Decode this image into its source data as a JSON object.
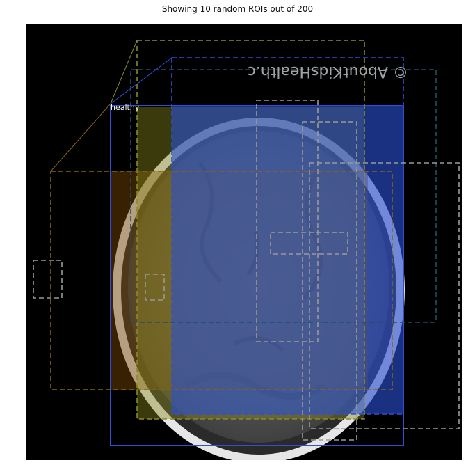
{
  "figure": {
    "title": "Showing 10 random ROIs out of 200"
  },
  "image": {
    "watermark": "© AboutKidsHealth.c"
  },
  "annotations": {
    "class_label": "healthy"
  },
  "colors": {
    "roi_blue": "#2f4fd8",
    "roi_olive": "#8a8a2a",
    "roi_orange": "#8a6414",
    "roi_teal": "#1d4f6a",
    "roi_gray": "#9a9a9a",
    "mask_blue": "#2a4fd0",
    "mask_olive": "#8d8a1f",
    "mask_orange": "#7a4a05"
  },
  "rois": [
    {
      "name": "roi-blue-solid",
      "style": "solid",
      "color": "roi_blue"
    },
    {
      "name": "roi-blue-dashed",
      "style": "dashed",
      "color": "roi_blue"
    },
    {
      "name": "roi-olive-dashed",
      "style": "dashed",
      "color": "roi_olive"
    },
    {
      "name": "roi-orange-dashed",
      "style": "dashed",
      "color": "roi_orange"
    },
    {
      "name": "roi-teal-dashed",
      "style": "dashed",
      "color": "roi_teal"
    },
    {
      "name": "roi-gray-1",
      "style": "dashed",
      "color": "roi_gray"
    },
    {
      "name": "roi-gray-2",
      "style": "dashed",
      "color": "roi_gray"
    },
    {
      "name": "roi-gray-3",
      "style": "dashed",
      "color": "roi_gray"
    },
    {
      "name": "roi-gray-4",
      "style": "dashed",
      "color": "roi_gray"
    },
    {
      "name": "roi-gray-5",
      "style": "dashed",
      "color": "roi_gray"
    }
  ]
}
